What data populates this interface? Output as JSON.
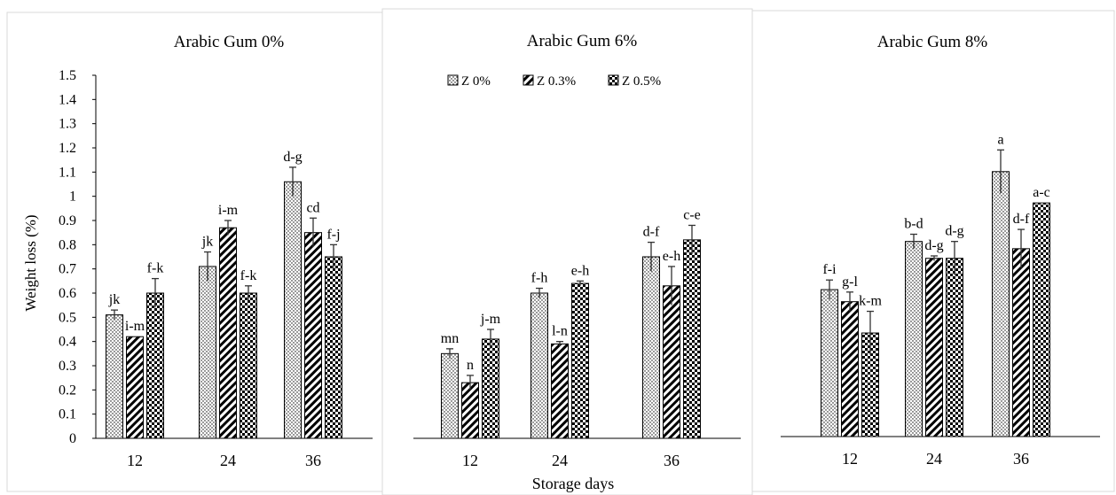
{
  "figure": {
    "xlabel": "Storage days",
    "legend_labels": [
      "Z 0%",
      "Z 0.3%",
      "Z 0.5%"
    ],
    "colors": {
      "bar_fill": "#ffffff",
      "bar_stroke": "#000000",
      "pattern": "#000000",
      "frame": "#d9d9d9"
    },
    "pattern_names": [
      "dots",
      "diagonal-stripes",
      "checkerboard"
    ]
  },
  "chart_data": [
    {
      "type": "bar",
      "title": "Arabic Gum 0%",
      "ylabel": "Weight loss (%)",
      "categories": [
        "12",
        "24",
        "36"
      ],
      "ylim": [
        0,
        1.5
      ],
      "ytick_step": 0.1,
      "yticks": [
        "0",
        "0.1",
        "0.2",
        "0.3",
        "0.4",
        "0.5",
        "0.6",
        "0.7",
        "0.8",
        "0.9",
        "1",
        "1.1",
        "1.2",
        "1.3",
        "1.4",
        "1.5"
      ],
      "series": [
        {
          "name": "Z 0%",
          "values": [
            0.51,
            0.71,
            1.06
          ],
          "errors": [
            0.02,
            0.06,
            0.06
          ],
          "labels": [
            "jk",
            "jk",
            "d-g"
          ]
        },
        {
          "name": "Z 0.3%",
          "values": [
            0.42,
            0.87,
            0.85
          ],
          "errors": [
            0.0,
            0.03,
            0.06
          ],
          "labels": [
            "i-m",
            "i-m",
            "cd"
          ]
        },
        {
          "name": "Z 0.5%",
          "values": [
            0.6,
            0.6,
            0.75
          ],
          "errors": [
            0.06,
            0.03,
            0.05
          ],
          "labels": [
            "f-k",
            "f-k",
            "f-j"
          ]
        }
      ]
    },
    {
      "type": "bar",
      "title": "Arabic Gum 6%",
      "categories": [
        "12",
        "24",
        "36"
      ],
      "ylim": [
        0,
        1.5
      ],
      "series": [
        {
          "name": "Z 0%",
          "values": [
            0.35,
            0.6,
            0.75
          ],
          "errors": [
            0.02,
            0.02,
            0.06
          ],
          "labels": [
            "mn",
            "f-h",
            "d-f"
          ]
        },
        {
          "name": "Z 0.3%",
          "values": [
            0.23,
            0.39,
            0.63
          ],
          "errors": [
            0.03,
            0.01,
            0.08
          ],
          "labels": [
            "n",
            "l-n",
            "e-h"
          ]
        },
        {
          "name": "Z 0.5%",
          "values": [
            0.41,
            0.64,
            0.82
          ],
          "errors": [
            0.04,
            0.01,
            0.06
          ],
          "labels": [
            "j-m",
            "e-h",
            "c-e"
          ]
        }
      ]
    },
    {
      "type": "bar",
      "title": "Arabic Gum 8%",
      "categories": [
        "12",
        "24",
        "36"
      ],
      "ylim": [
        0,
        1.5
      ],
      "series": [
        {
          "name": "Z 0%",
          "values": [
            0.61,
            0.81,
            1.1
          ],
          "errors": [
            0.04,
            0.03,
            0.09
          ],
          "labels": [
            "f-i",
            "b-d",
            "a"
          ]
        },
        {
          "name": "Z 0.3%",
          "values": [
            0.56,
            0.74,
            0.78
          ],
          "errors": [
            0.04,
            0.01,
            0.08
          ],
          "labels": [
            "g-l",
            "d-g",
            "d-f"
          ]
        },
        {
          "name": "Z 0.5%",
          "values": [
            0.43,
            0.74,
            0.97
          ],
          "errors": [
            0.09,
            0.07,
            0.0
          ],
          "labels": [
            "k-m",
            "d-g",
            "a-c"
          ]
        }
      ]
    }
  ]
}
